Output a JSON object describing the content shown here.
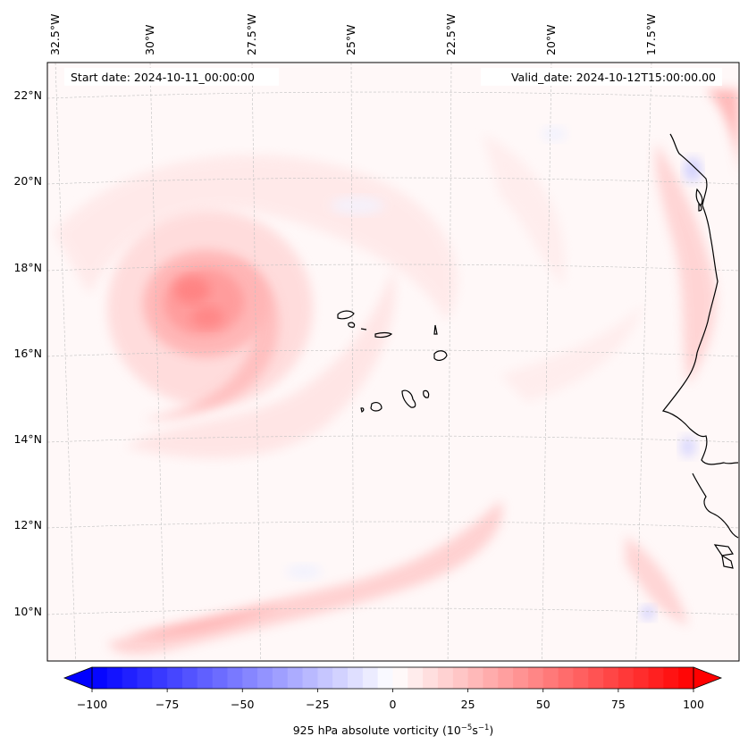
{
  "map": {
    "start_date": "Start date: 2024-10-11_00:00:00",
    "valid_date": "Valid_date: 2024-10-12T15:00:00.00",
    "top_lon_labels": [
      "32.5°W",
      "30°W",
      "27.5°W",
      "25°W",
      "22.5°W",
      "20°W",
      "17.5°W"
    ],
    "left_lat_labels": [
      "22°N",
      "20°N",
      "18°N",
      "16°N",
      "14°N",
      "12°N",
      "10°N"
    ],
    "extent": {
      "lon_min": -33.5,
      "lon_max": -16.0,
      "lat_min": 8.8,
      "lat_max": 22.8
    }
  },
  "colorbar": {
    "vmin": -100,
    "vmax": 100,
    "levels": 40,
    "tick_values": [
      -100,
      -75,
      -50,
      -25,
      0,
      25,
      50,
      75,
      100
    ],
    "tick_labels": [
      "−100",
      "−75",
      "−50",
      "−25",
      "0",
      "25",
      "50",
      "75",
      "100"
    ],
    "label": "925 hPa absolute vorticity (10",
    "label_exp1": "−5",
    "label_mid": "s",
    "label_exp2": "−1",
    "label_end": ")",
    "cmap": "bwr",
    "color_low": "#0000ff",
    "color_mid": "#ffffff",
    "color_high": "#ff0000"
  },
  "features": {
    "storm_center": {
      "lon": -29.5,
      "lat": 17.2,
      "peak_vorticity": 40
    },
    "ocean_background_vorticity": 3
  }
}
